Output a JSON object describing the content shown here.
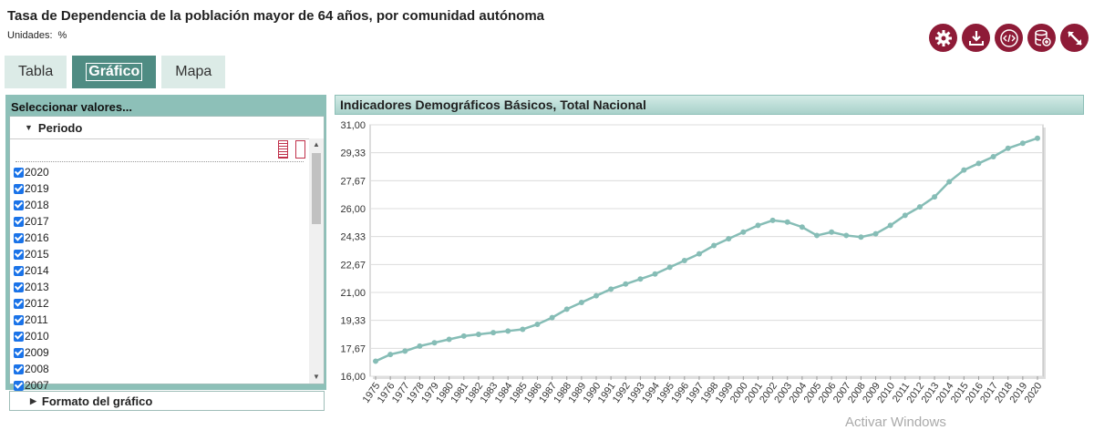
{
  "header": {
    "title": "Tasa de Dependencia de la población mayor de 64 años, por comunidad autónoma",
    "units_label": "Unidades:",
    "units_value": "%"
  },
  "toolbar": {
    "buttons": [
      {
        "icon": "gear-icon"
      },
      {
        "icon": "download-icon"
      },
      {
        "icon": "embed-code-icon"
      },
      {
        "icon": "database-add-icon"
      },
      {
        "icon": "expand-icon"
      }
    ],
    "color": "#8e1b37"
  },
  "tabs": [
    {
      "label": "Tabla",
      "active": false
    },
    {
      "label": "Gráfico",
      "active": true
    },
    {
      "label": "Mapa",
      "active": false
    }
  ],
  "left_panel": {
    "title": "Seleccionar valores...",
    "section": "Periodo",
    "years": [
      "2020",
      "2019",
      "2018",
      "2017",
      "2016",
      "2015",
      "2014",
      "2013",
      "2012",
      "2011",
      "2010",
      "2009",
      "2008",
      "2007"
    ],
    "footer": "Formato del gráfico"
  },
  "chart_header": "Indicadores Demográficos Básicos, Total Nacional",
  "chart_data": {
    "type": "line",
    "x": [
      "1975",
      "1976",
      "1977",
      "1978",
      "1979",
      "1980",
      "1981",
      "1982",
      "1983",
      "1984",
      "1985",
      "1986",
      "1987",
      "1988",
      "1989",
      "1990",
      "1991",
      "1992",
      "1993",
      "1994",
      "1995",
      "1996",
      "1997",
      "1998",
      "1999",
      "2000",
      "2001",
      "2002",
      "2003",
      "2004",
      "2005",
      "2006",
      "2007",
      "2008",
      "2009",
      "2010",
      "2011",
      "2012",
      "2013",
      "2014",
      "2015",
      "2016",
      "2017",
      "2018",
      "2019",
      "2020"
    ],
    "series": [
      {
        "values": [
          16.9,
          17.3,
          17.5,
          17.8,
          18.0,
          18.2,
          18.4,
          18.5,
          18.6,
          18.7,
          18.8,
          19.1,
          19.5,
          20.0,
          20.4,
          20.8,
          21.2,
          21.5,
          21.8,
          22.1,
          22.5,
          22.9,
          23.3,
          23.8,
          24.2,
          24.6,
          25.0,
          25.3,
          25.2,
          24.9,
          24.4,
          24.6,
          24.4,
          24.3,
          24.5,
          25.0,
          25.6,
          26.1,
          26.7,
          27.6,
          28.3,
          28.7,
          29.1,
          29.6,
          29.9,
          30.2
        ],
        "color": "#86bdb6"
      }
    ],
    "yticks": [
      "16,00",
      "17,67",
      "19,33",
      "21,00",
      "22,67",
      "24,33",
      "26,00",
      "27,67",
      "29,33",
      "31,00"
    ],
    "ylim": [
      16,
      31
    ],
    "grid": true
  },
  "watermark": "Activar Windows"
}
